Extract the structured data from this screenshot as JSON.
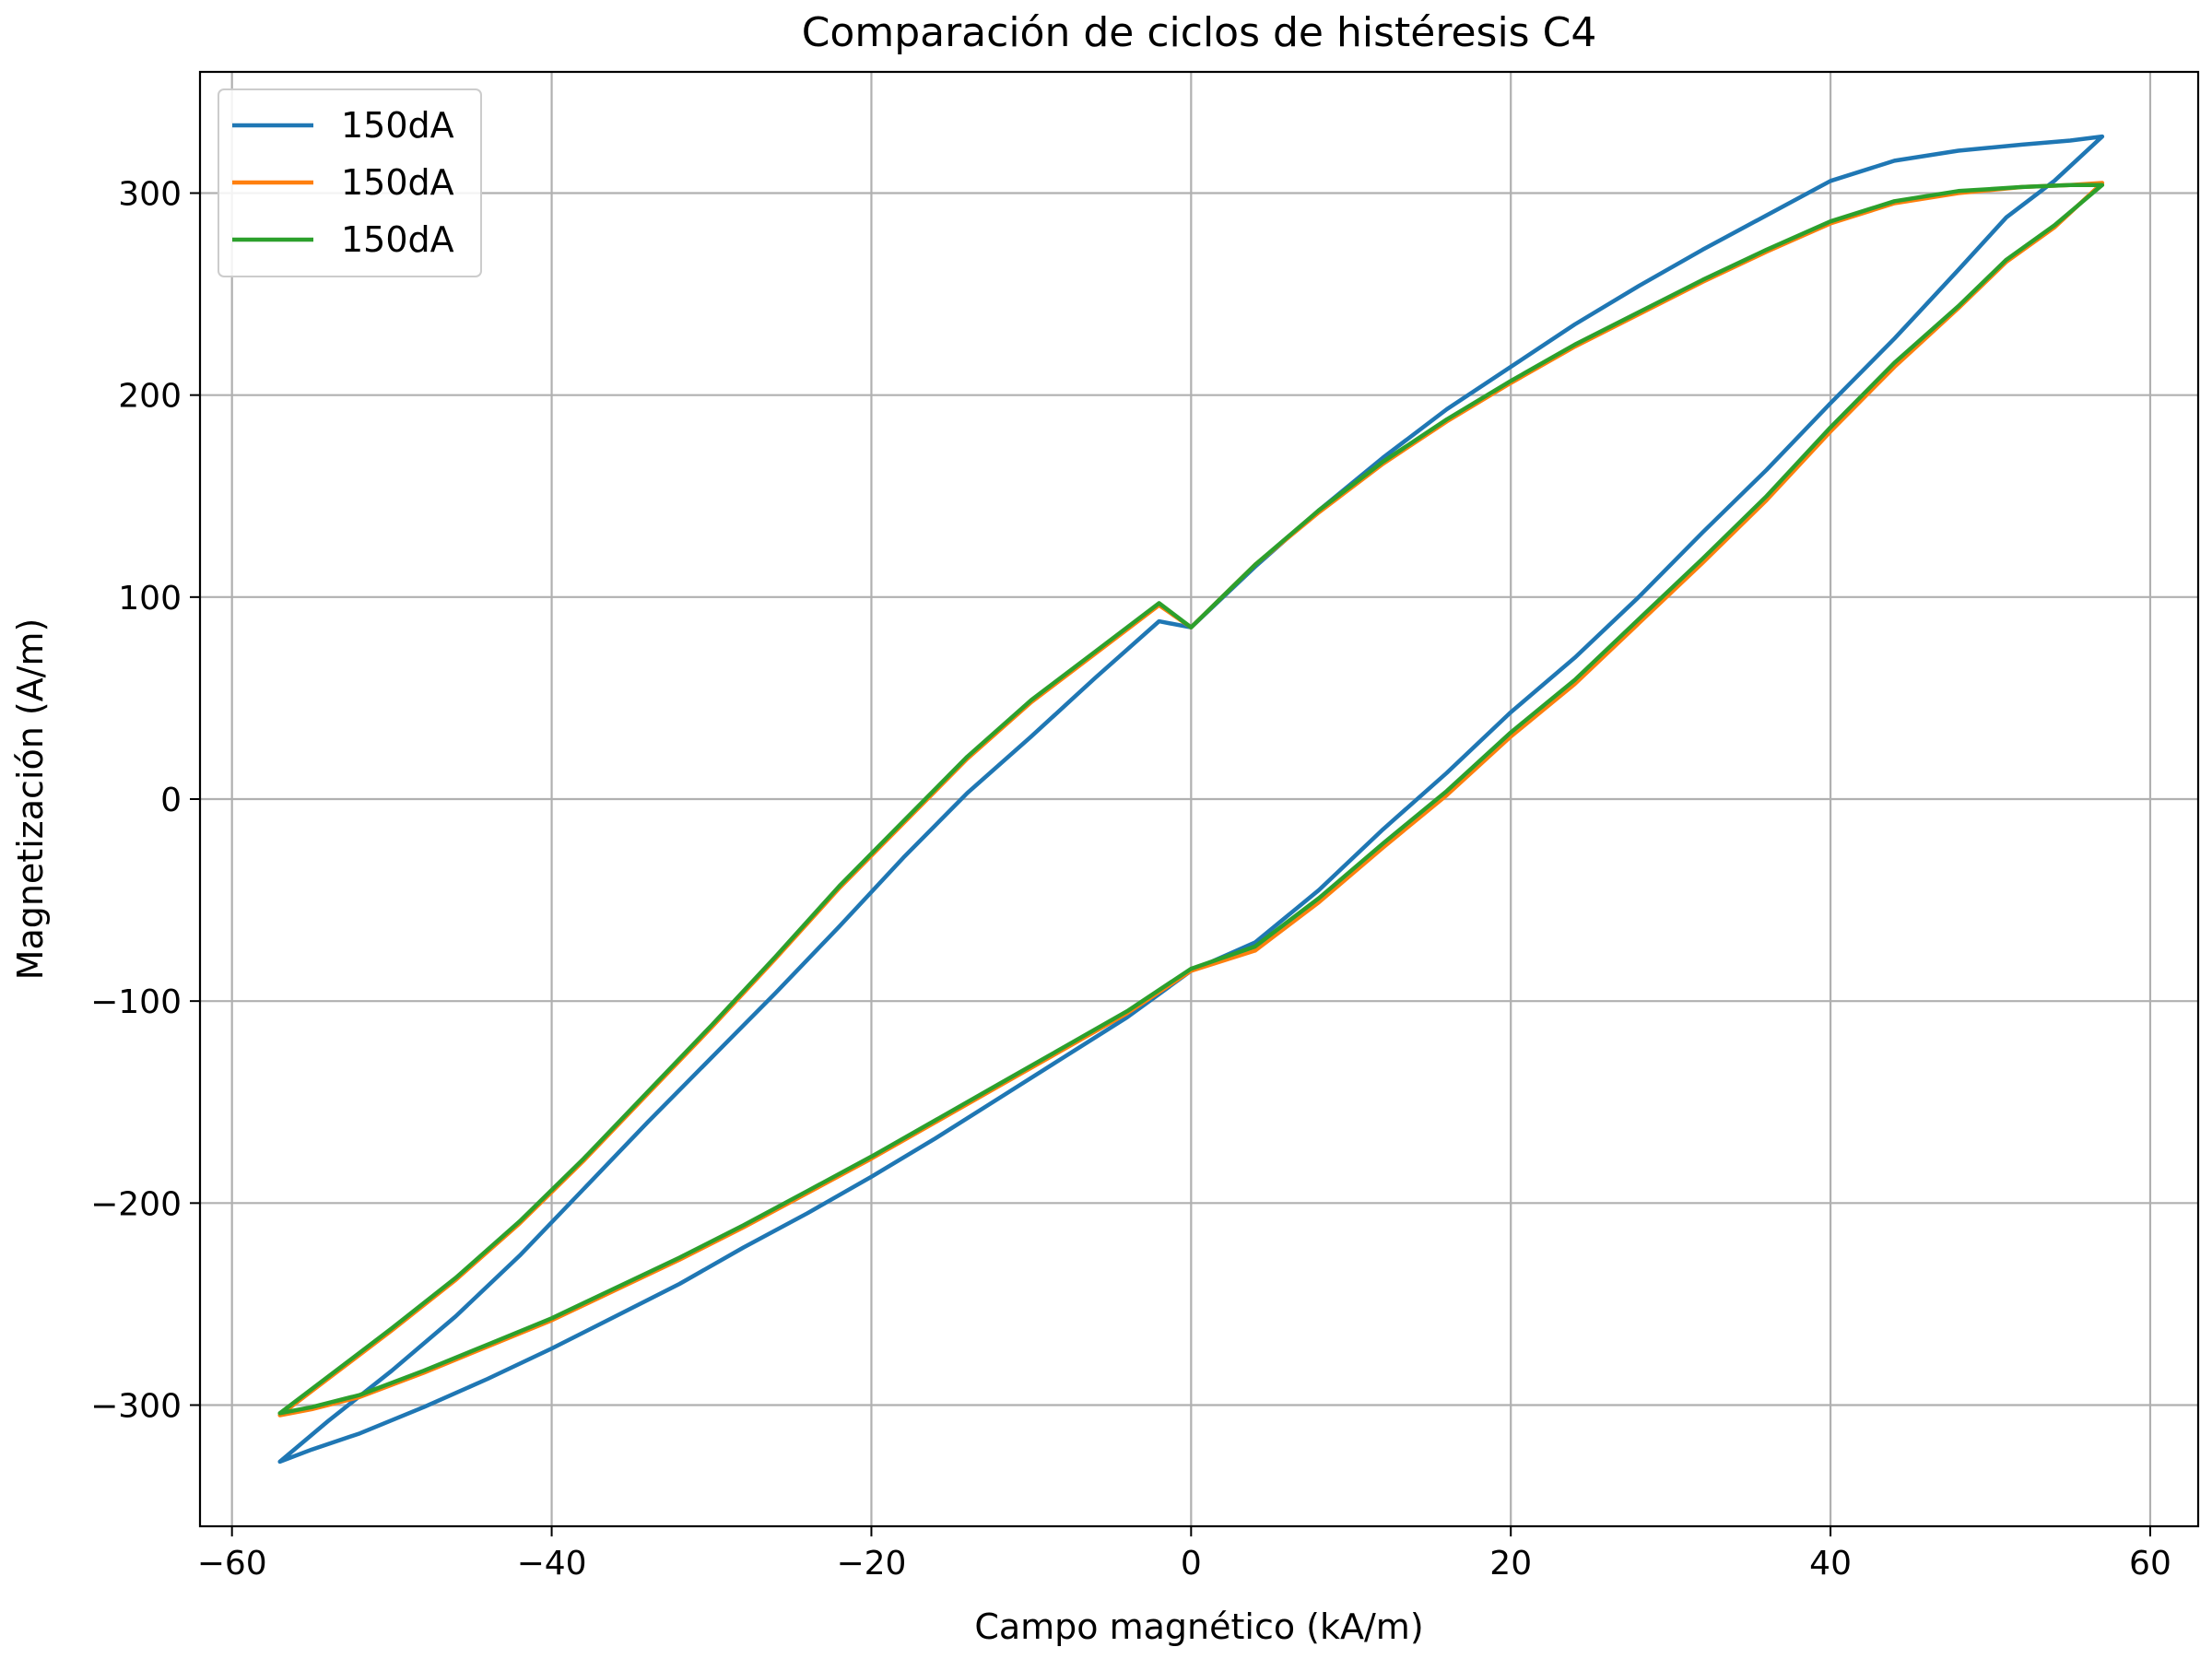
{
  "chart_data": {
    "type": "line",
    "title": "Comparación de ciclos de histéresis C4",
    "xlabel": "Campo magnético (kA/m)",
    "ylabel": "Magnetización (A/m)",
    "xlim": [
      -62,
      63
    ],
    "ylim": [
      -360,
      360
    ],
    "xticks": [
      -60,
      -40,
      -20,
      0,
      20,
      40,
      60
    ],
    "yticks": [
      -300,
      -200,
      -100,
      0,
      100,
      200,
      300
    ],
    "xtick_labels": [
      "−60",
      "−40",
      "−20",
      "0",
      "20",
      "40",
      "60"
    ],
    "ytick_labels": [
      "−300",
      "−200",
      "−100",
      "0",
      "100",
      "200",
      "300"
    ],
    "grid": true,
    "legend_position": "top-left",
    "series": [
      {
        "name": "150dA",
        "color": "#1f77b4",
        "x": [
          -57,
          -54,
          -50,
          -46,
          -42,
          -38,
          -34,
          -30,
          -26,
          -22,
          -18,
          -14,
          -10,
          -6,
          -2,
          0,
          4,
          8,
          12,
          16,
          20,
          24,
          28,
          32,
          36,
          40,
          44,
          48,
          52,
          55,
          57,
          54,
          51,
          48,
          44,
          40,
          36,
          32,
          28,
          24,
          20,
          16,
          12,
          8,
          4,
          0,
          -4,
          -8,
          -12,
          -16,
          -20,
          -24,
          -28,
          -32,
          -36,
          -40,
          -44,
          -48,
          -52,
          -55,
          -57
        ],
        "y": [
          -328,
          -308,
          -283,
          -256,
          -226,
          -193,
          -160,
          -128,
          -96,
          -63,
          -29,
          3,
          31,
          60,
          88,
          85,
          115,
          143,
          169,
          193,
          214,
          235,
          254,
          272,
          289,
          306,
          316,
          321,
          324,
          326,
          328,
          306,
          288,
          262,
          228,
          196,
          163,
          132,
          100,
          70,
          43,
          13,
          -15,
          -45,
          -71,
          -85,
          -108,
          -128,
          -148,
          -168,
          -187,
          -205,
          -222,
          -240,
          -256,
          -272,
          -287,
          -301,
          -314,
          -322,
          -328
        ]
      },
      {
        "name": "150dA",
        "color": "#ff7f0e",
        "x": [
          -57,
          -54,
          -50,
          -46,
          -42,
          -38,
          -34,
          -30,
          -26,
          -22,
          -18,
          -14,
          -10,
          -6,
          -2,
          0,
          4,
          8,
          12,
          16,
          20,
          24,
          28,
          32,
          36,
          40,
          44,
          48,
          52,
          55,
          57,
          54,
          51,
          48,
          44,
          40,
          36,
          32,
          28,
          24,
          20,
          16,
          12,
          8,
          4,
          0,
          -4,
          -8,
          -12,
          -16,
          -20,
          -24,
          -28,
          -32,
          -36,
          -40,
          -44,
          -48,
          -52,
          -55,
          -57
        ],
        "y": [
          -305,
          -287,
          -263,
          -238,
          -210,
          -179,
          -146,
          -113,
          -79,
          -44,
          -12,
          20,
          48,
          72,
          96,
          85,
          116,
          142,
          166,
          187,
          206,
          224,
          240,
          256,
          271,
          285,
          295,
          300,
          303,
          304,
          305,
          283,
          266,
          243,
          214,
          182,
          148,
          117,
          87,
          57,
          31,
          2,
          -24,
          -51,
          -75,
          -85,
          -106,
          -124,
          -142,
          -160,
          -178,
          -195,
          -212,
          -228,
          -243,
          -258,
          -271,
          -284,
          -296,
          -302,
          -305
        ]
      },
      {
        "name": "150dA",
        "color": "#2ca02c",
        "x": [
          -57,
          -54,
          -50,
          -46,
          -42,
          -38,
          -34,
          -30,
          -26,
          -22,
          -18,
          -14,
          -10,
          -6,
          -2,
          0,
          4,
          8,
          12,
          16,
          20,
          24,
          28,
          32,
          36,
          40,
          44,
          48,
          52,
          55,
          57,
          54,
          51,
          48,
          44,
          40,
          36,
          32,
          28,
          24,
          20,
          16,
          12,
          8,
          4,
          0,
          -4,
          -8,
          -12,
          -16,
          -20,
          -24,
          -28,
          -32,
          -36,
          -40,
          -44,
          -48,
          -52,
          -55,
          -57
        ],
        "y": [
          -304,
          -286,
          -262,
          -237,
          -209,
          -178,
          -145,
          -112,
          -78,
          -43,
          -11,
          21,
          49,
          73,
          97,
          85,
          116,
          143,
          167,
          188,
          207,
          225,
          241,
          257,
          272,
          286,
          296,
          301,
          303,
          304,
          304,
          284,
          267,
          244,
          216,
          184,
          150,
          119,
          89,
          59,
          33,
          4,
          -22,
          -49,
          -73,
          -84,
          -105,
          -123,
          -141,
          -159,
          -177,
          -194,
          -211,
          -227,
          -242,
          -257,
          -270,
          -283,
          -295,
          -301,
          -304
        ]
      }
    ]
  }
}
